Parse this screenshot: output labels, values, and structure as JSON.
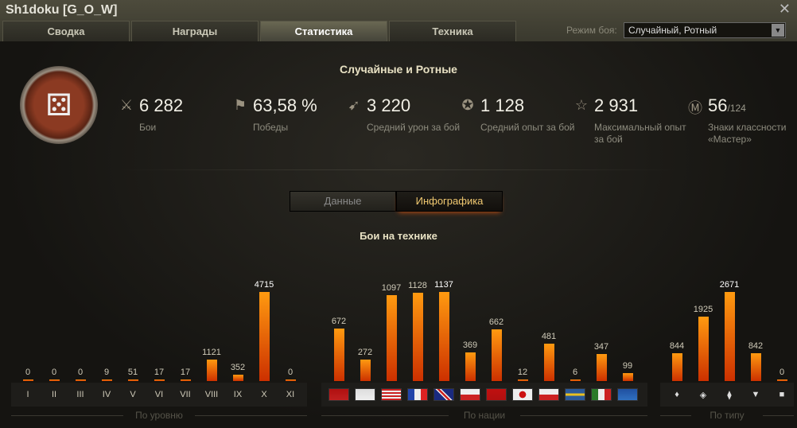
{
  "window": {
    "title": "Sh1doku [G_O_W]",
    "close_icon": "close-icon"
  },
  "tabs": [
    {
      "label": "Сводка"
    },
    {
      "label": "Награды"
    },
    {
      "label": "Статистика",
      "active": true
    },
    {
      "label": "Техника"
    }
  ],
  "mode": {
    "label": "Режим боя:",
    "value": "Случайный, Ротный"
  },
  "section_title": "Случайные и Ротные",
  "stats": [
    {
      "icon": "crossed-swords-icon",
      "value": "6 282",
      "label": "Бои"
    },
    {
      "icon": "flag-icon",
      "value": "63,58 %",
      "label": "Победы"
    },
    {
      "icon": "shell-icon",
      "value": "3 220",
      "label": "Средний урон за бой"
    },
    {
      "icon": "star-icon",
      "value": "1 128",
      "label": "Средний опыт за бой"
    },
    {
      "icon": "star-outline-icon",
      "value": "2 931",
      "label": "Максимальный опыт за бой"
    },
    {
      "icon": "mastery-badge-icon",
      "value": "56",
      "suffix": "/124",
      "label": "Знаки классности «Мастер»"
    }
  ],
  "view_toggle": {
    "data": "Данные",
    "infographic": "Инфографика",
    "active": "infographic"
  },
  "chart_title": "Бои на технике",
  "chart_data": [
    {
      "type": "bar",
      "group": "По уровню",
      "categories": [
        "I",
        "II",
        "III",
        "IV",
        "V",
        "VI",
        "VII",
        "VIII",
        "IX",
        "X",
        "XI"
      ],
      "values": [
        0,
        0,
        0,
        9,
        51,
        17,
        17,
        1121,
        352,
        4715,
        0
      ]
    },
    {
      "type": "bar",
      "group": "По нации",
      "categories": [
        "СССР",
        "Германия",
        "США",
        "Франция",
        "Великобритания",
        "Чехословакия",
        "Китай",
        "Япония",
        "Польша",
        "Швеция",
        "Италия",
        "Сборная"
      ],
      "values": [
        672,
        272,
        1097,
        1128,
        1137,
        369,
        662,
        12,
        481,
        6,
        347,
        99
      ]
    },
    {
      "type": "bar",
      "group": "По типу",
      "categories": [
        "light-tank-icon",
        "medium-tank-icon",
        "heavy-tank-icon",
        "tank-destroyer-icon",
        "spg-icon"
      ],
      "values": [
        844,
        1925,
        2671,
        842,
        0
      ]
    }
  ],
  "colors": {
    "bar_top": "#ff9a10",
    "bar_bottom": "#cc3000",
    "accent": "#f0c870"
  }
}
